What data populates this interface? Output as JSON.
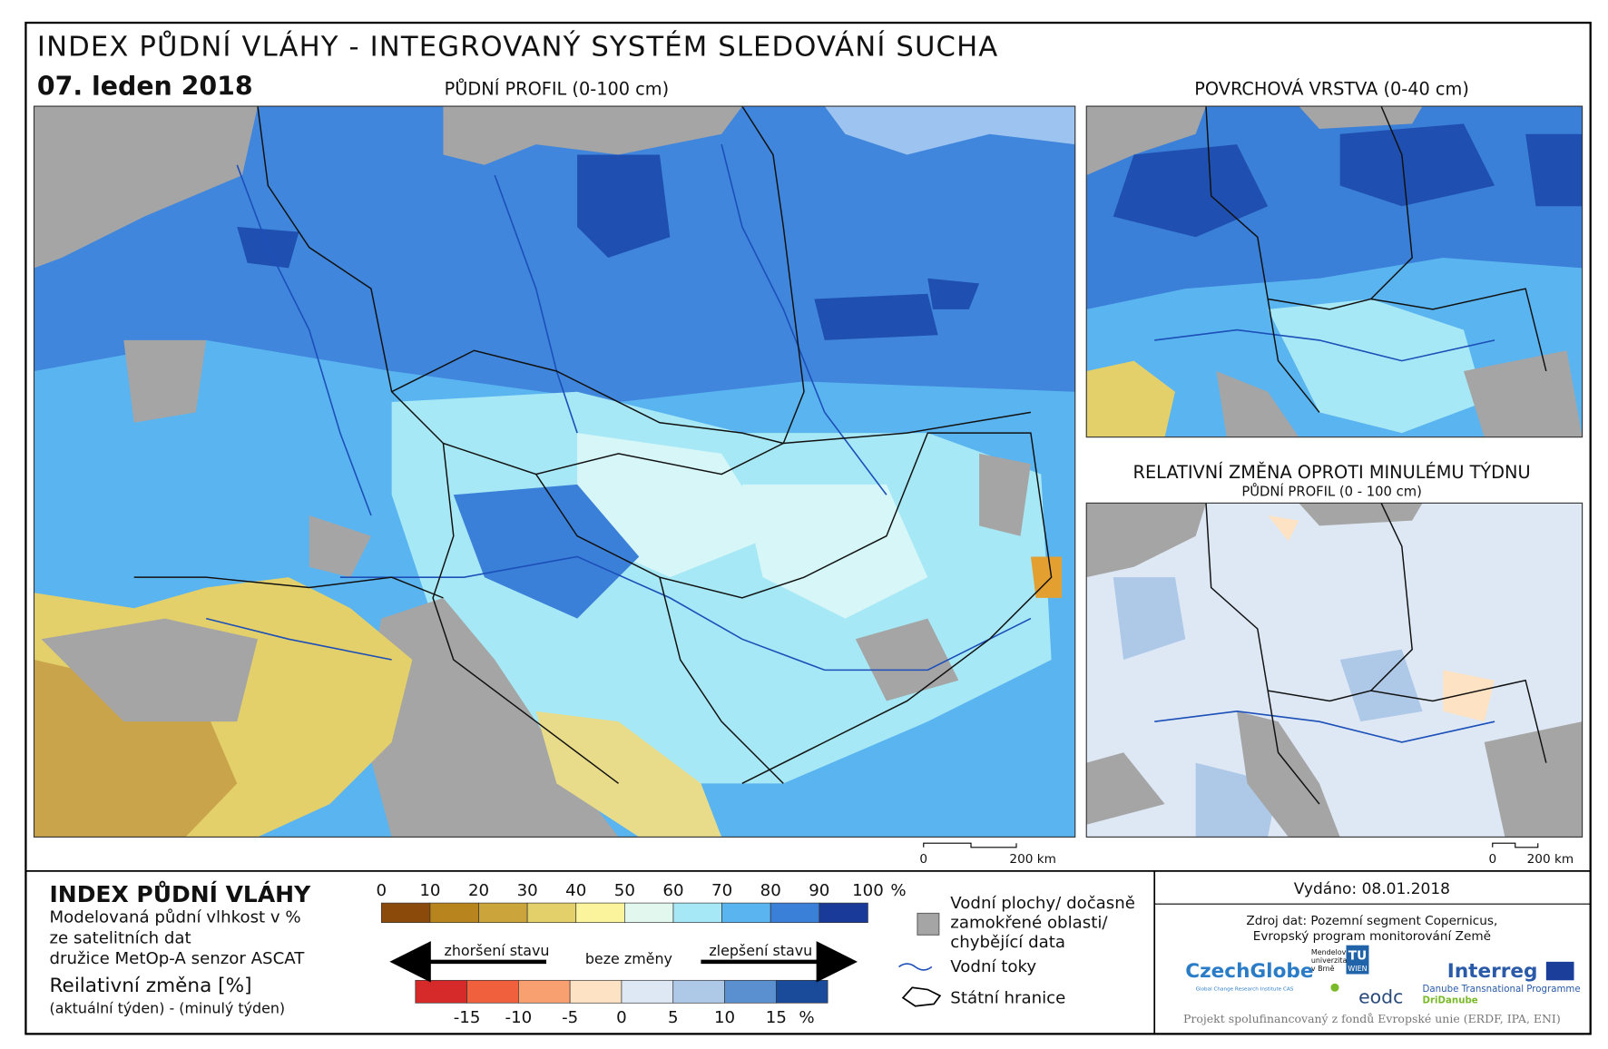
{
  "header": {
    "title": "INDEX PŮDNÍ VLÁHY - INTEGROVANÝ SYSTÉM SLEDOVÁNÍ SUCHA",
    "date": "07. leden 2018"
  },
  "maps": {
    "main": {
      "label": "PŮDNÍ PROFIL (0-100 cm)",
      "scale": [
        "0",
        "200 km"
      ]
    },
    "surface": {
      "label": "POVRCHOVÁ VRSTVA (0-40 cm)"
    },
    "change": {
      "label": "RELATIVNÍ ZMĚNA OPROTI MINULÉMU TÝDNU",
      "sublabel": "PŮDNÍ PROFIL (0 - 100 cm)",
      "scale": [
        "0",
        "200 km"
      ]
    }
  },
  "legend": {
    "title": "INDEX PŮDNÍ VLÁHY",
    "description": [
      "Modelovaná půdní vlhkost v %",
      "ze satelitních dat",
      "družice MetOp-A senzor ASCAT"
    ],
    "change_title": "Reilativní změna [%]",
    "change_formula": "(aktuální týden) - (minulý týden)",
    "index_ticks": [
      0,
      10,
      20,
      30,
      40,
      50,
      60,
      70,
      80,
      90,
      100
    ],
    "index_unit": "%",
    "index_colors": [
      "#8b4a0a",
      "#b8841e",
      "#cba53c",
      "#e3d06a",
      "#fbf49c",
      "#e2f8ef",
      "#a6e8f5",
      "#5ab4f0",
      "#3a7fd8",
      "#1a3a9a"
    ],
    "change_words": {
      "worse": "zhoršení stavu",
      "none": "beze změny",
      "better": "zlepšení stavu"
    },
    "change_ticks": [
      -15,
      -10,
      -5,
      0,
      5,
      10,
      15
    ],
    "change_unit": "%",
    "change_colors": [
      "#d62a2a",
      "#f0603c",
      "#f8a070",
      "#fde2c4",
      "#dde8f4",
      "#aec8e8",
      "#5a8fd0",
      "#1a4a9a"
    ],
    "water": [
      "Vodní plochy/ dočasně",
      "zamokřené oblasti/",
      "chybějící data"
    ],
    "rivers": "Vodní toky",
    "borders": "Státní hranice"
  },
  "footer": {
    "issued": "Vydáno: 08.01.2018",
    "source": [
      "Zdroj dat: Pozemní segment Copernicus,",
      "Evropský program monitorování Země"
    ],
    "logos": {
      "czechglobe": "CzechGlobe",
      "czechglobe_sub": "Global Change Research Institute CAS",
      "mendel": [
        "Mendelova",
        "univerzita",
        "v Brně"
      ],
      "tu": "TU",
      "wien": "WIEN",
      "eodc": "eodc",
      "interreg": "Interreg",
      "programme": "Danube Transnational Programme",
      "project": "DriDanube"
    },
    "funding": "Projekt spolufinancovaný z fondů Evropské unie (ERDF, IPA, ENI)"
  }
}
